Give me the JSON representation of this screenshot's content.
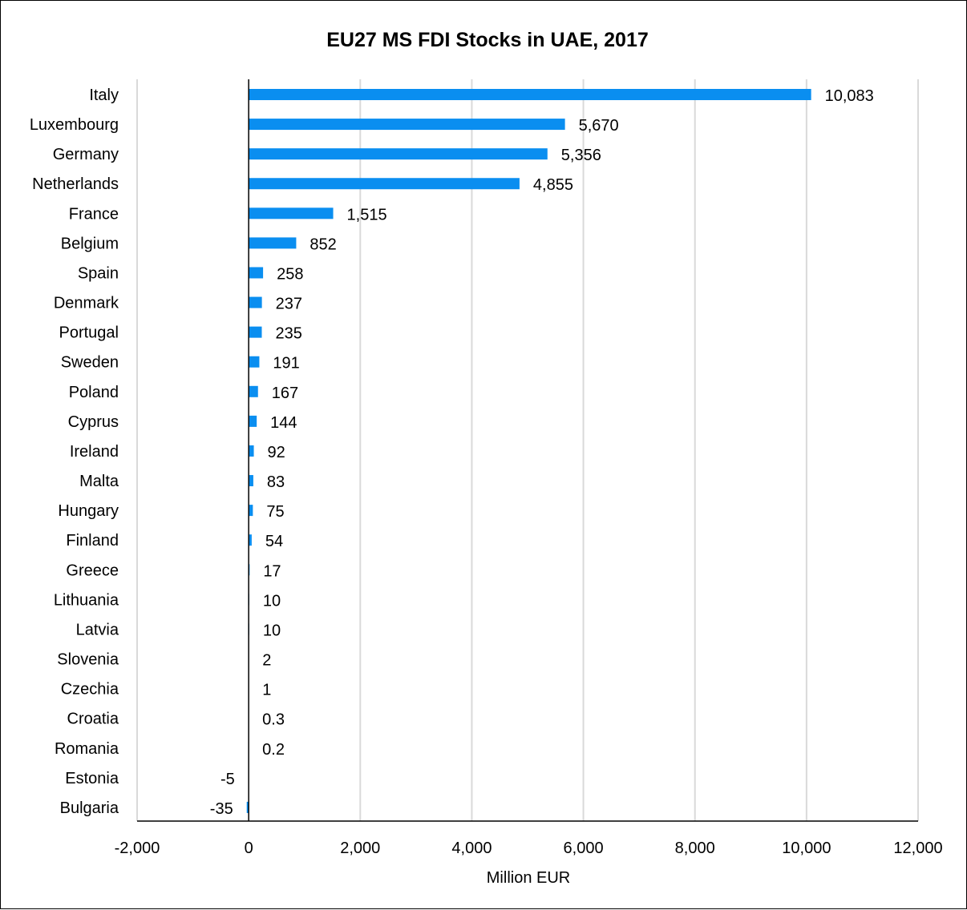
{
  "chart_data": {
    "type": "bar",
    "orientation": "horizontal",
    "title": "EU27 MS FDI Stocks in UAE, 2017",
    "xlabel": "Million EUR",
    "ylabel": "",
    "xlim": [
      -2000,
      12000
    ],
    "x_ticks": [
      -2000,
      0,
      2000,
      4000,
      6000,
      8000,
      10000,
      12000
    ],
    "x_tick_labels": [
      "-2,000",
      "0",
      "2,000",
      "4,000",
      "6,000",
      "8,000",
      "10,000",
      "12,000"
    ],
    "grid": "vertical",
    "legend": "none",
    "bar_color": "#0A8EF0",
    "categories": [
      "Italy",
      "Luxembourg",
      "Germany",
      "Netherlands",
      "France",
      "Belgium",
      "Spain",
      "Denmark",
      "Portugal",
      "Sweden",
      "Poland",
      "Cyprus",
      "Ireland",
      "Malta",
      "Hungary",
      "Finland",
      "Greece",
      "Lithuania",
      "Latvia",
      "Slovenia",
      "Czechia",
      "Croatia",
      "Romania",
      "Estonia",
      "Bulgaria"
    ],
    "values": [
      10083,
      5670,
      5356,
      4855,
      1515,
      852,
      258,
      237,
      235,
      191,
      167,
      144,
      92,
      83,
      75,
      54,
      17,
      10,
      10,
      2,
      1,
      0.3,
      0.2,
      -5,
      -35
    ],
    "value_labels": [
      "10,083",
      "5,670",
      "5,356",
      "4,855",
      "1,515",
      "852",
      "258",
      "237",
      "235",
      "191",
      "167",
      "144",
      "92",
      "83",
      "75",
      "54",
      "17",
      "10",
      "10",
      "2",
      "1",
      "0.3",
      "0.2",
      "-5",
      "-35"
    ]
  }
}
